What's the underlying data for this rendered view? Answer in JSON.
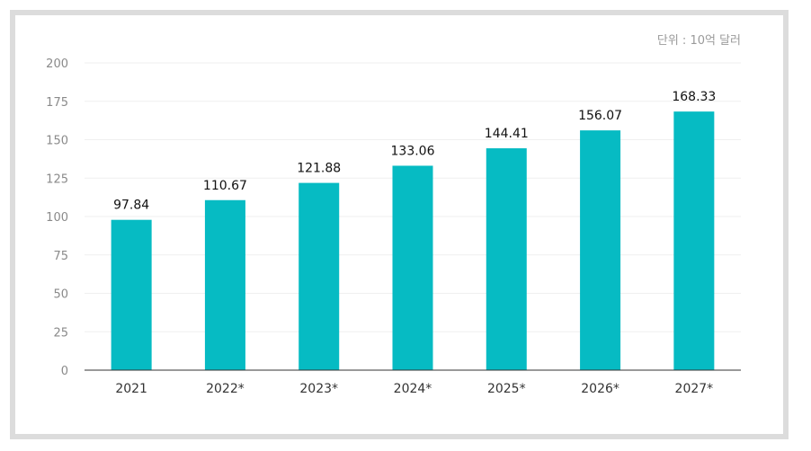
{
  "unit_label": "단위 : 10억 달러",
  "colors": {
    "bar": "#06BBC3",
    "grid": "#efefef",
    "axis": "#333333",
    "frame": "#dcdcdc"
  },
  "chart_data": {
    "type": "bar",
    "title": "",
    "xlabel": "",
    "ylabel": "",
    "unit": "단위 : 10억 달러",
    "categories": [
      "2021",
      "2022*",
      "2023*",
      "2024*",
      "2025*",
      "2026*",
      "2027*"
    ],
    "values": [
      97.84,
      110.67,
      121.88,
      133.06,
      144.41,
      156.07,
      168.33
    ],
    "value_labels": [
      "97.84",
      "110.67",
      "121.88",
      "133.06",
      "144.41",
      "156.07",
      "168.33"
    ],
    "ylim": [
      0,
      200
    ],
    "yticks": [
      0,
      25,
      50,
      75,
      100,
      125,
      150,
      175,
      200
    ],
    "grid": true,
    "legend": "none"
  }
}
